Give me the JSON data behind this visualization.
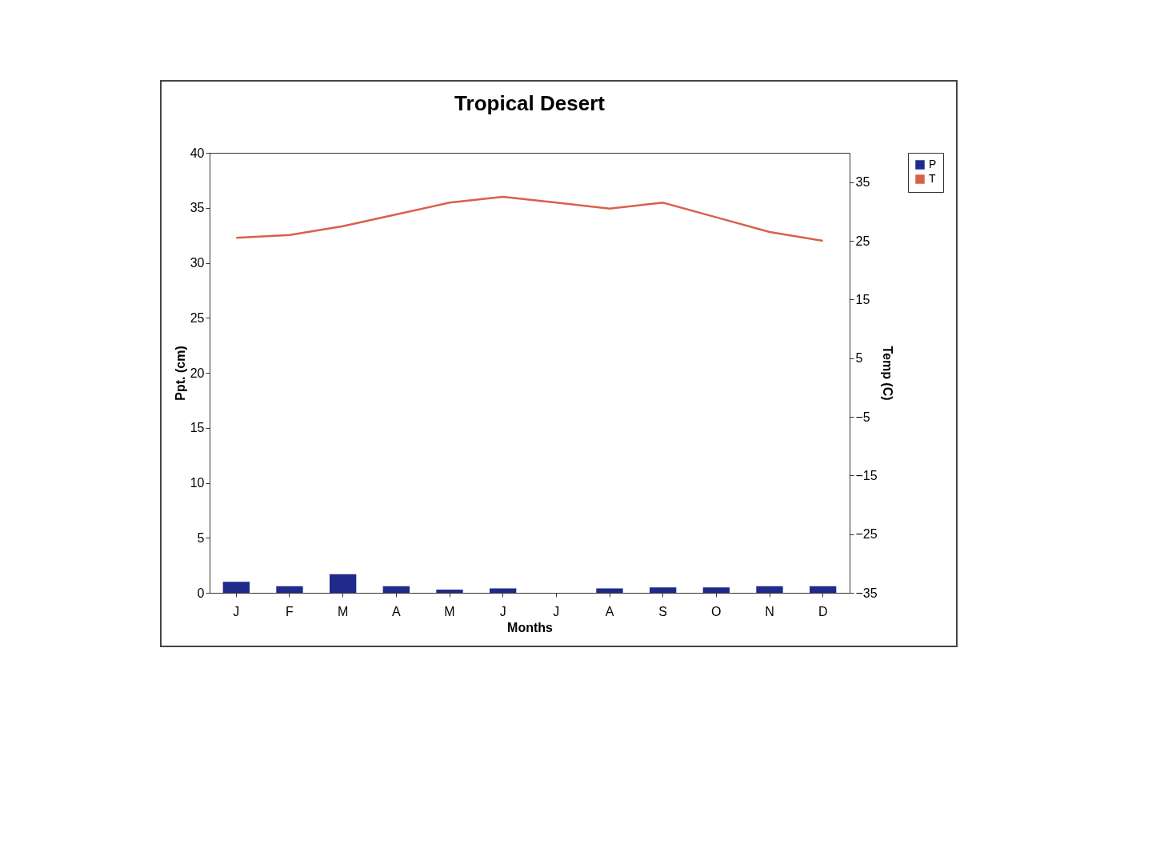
{
  "chart_data": {
    "type": "bar",
    "title": "Tropical Desert",
    "xlabel": "Months",
    "ylabel": "Ppt. (cm)",
    "y2label": "Temp (C)",
    "categories": [
      "J",
      "F",
      "M",
      "A",
      "M",
      "J",
      "J",
      "A",
      "S",
      "O",
      "N",
      "D"
    ],
    "series": [
      {
        "name": "P",
        "color": "#1f2a8a",
        "values": [
          1,
          0.6,
          1.7,
          0.6,
          0.3,
          0.4,
          0,
          0.4,
          0.5,
          0.5,
          0.6,
          0.6
        ]
      },
      {
        "name": "T",
        "type": "line",
        "axis": "y2",
        "color": "#d9604a",
        "values": [
          25.5,
          26,
          27.5,
          29.5,
          31.5,
          32.5,
          31.5,
          30.5,
          31.5,
          29,
          26.5,
          25
        ]
      }
    ],
    "ylim": [
      0,
      40
    ],
    "yticks": [
      0,
      5,
      10,
      15,
      20,
      25,
      30,
      35,
      40
    ],
    "y2lim": [
      -35,
      40
    ],
    "y2ticks": [
      -35,
      -25,
      -15,
      -5,
      5,
      15,
      25,
      35
    ],
    "legend": "right",
    "grid": false
  }
}
